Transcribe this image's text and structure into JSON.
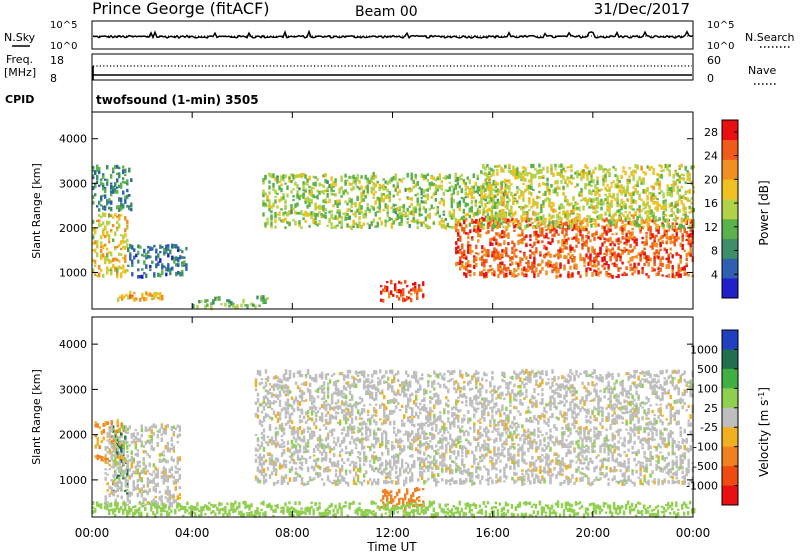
{
  "header": {
    "station": "Prince George (fitACF)",
    "beam": "Beam 00",
    "date": "31/Dec/2017"
  },
  "top_panels": {
    "nsky_label": "N.Sky",
    "nsearch_label": "N.Search",
    "noise_ticks": [
      "10^5",
      "10^0"
    ],
    "freq_label": "Freq.",
    "freq_unit": "[MHz]",
    "freq_ticks": [
      "18",
      "8"
    ],
    "nave_label": "Nave",
    "nave_ticks": [
      "60",
      "0"
    ],
    "cpid_label": "CPID",
    "cpid_text": "twofsound (1-min) 3505"
  },
  "colors": {
    "power_scale": [
      "#1f1fcc",
      "#2f5fb0",
      "#3d8f6a",
      "#59b24a",
      "#b2d24a",
      "#f0c020",
      "#f09020",
      "#f05a1a",
      "#e81010"
    ],
    "velocity_scale": [
      "#2040c0",
      "#207050",
      "#40b040",
      "#90d050",
      "#bebebe",
      "#f0b020",
      "#f08020",
      "#f04a10",
      "#e81010"
    ]
  },
  "chart_data": [
    {
      "type": "heatmap",
      "title": "Power",
      "xlabel": "",
      "ylabel": "Slant Range [km]",
      "x_ticks": [
        "00:00",
        "04:00",
        "08:00",
        "12:00",
        "16:00",
        "20:00",
        "00:00"
      ],
      "x_range_hours": [
        0,
        24
      ],
      "y_ticks": [
        1000,
        2000,
        3000,
        4000
      ],
      "ylim": [
        180,
        4600
      ],
      "colorbar": {
        "label": "Power [dB]",
        "ticks": [
          "4",
          "8",
          "12",
          "16",
          "20",
          "24",
          "28"
        ],
        "range": [
          0,
          30
        ]
      },
      "features": [
        {
          "region": "morning high band",
          "t": [
            0.0,
            1.6
          ],
          "range_km": [
            2400,
            3400
          ],
          "power_db": 8
        },
        {
          "region": "early echo blob",
          "t": [
            0.0,
            1.4
          ],
          "range_km": [
            900,
            2300
          ],
          "power_db": 18
        },
        {
          "region": "ground-scatter strip",
          "t": [
            1.0,
            2.8
          ],
          "range_km": [
            380,
            550
          ],
          "power_db": 20
        },
        {
          "region": "mid-range patch",
          "t": [
            1.4,
            3.8
          ],
          "range_km": [
            900,
            1600
          ],
          "power_db": 6
        },
        {
          "region": "near-range scatter",
          "t": [
            4.0,
            7.0
          ],
          "range_km": [
            200,
            450
          ],
          "power_db": 12
        },
        {
          "region": "high band",
          "t": [
            6.8,
            16.5
          ],
          "range_km": [
            2000,
            3200
          ],
          "power_db": 14
        },
        {
          "region": "noon echo",
          "t": [
            11.5,
            13.2
          ],
          "range_km": [
            350,
            800
          ],
          "power_db": 28
        },
        {
          "region": "evening band",
          "t": [
            14.5,
            24.0
          ],
          "range_km": [
            900,
            2200
          ],
          "power_db": 26
        },
        {
          "region": "evening high band",
          "t": [
            15.5,
            24.0
          ],
          "range_km": [
            2000,
            3400
          ],
          "power_db": 16
        }
      ]
    },
    {
      "type": "heatmap",
      "title": "Velocity",
      "xlabel": "Time UT",
      "ylabel": "Slant Range [km]",
      "x_ticks": [
        "00:00",
        "04:00",
        "08:00",
        "12:00",
        "16:00",
        "20:00",
        "00:00"
      ],
      "x_range_hours": [
        0,
        24
      ],
      "y_ticks": [
        1000,
        2000,
        3000,
        4000
      ],
      "ylim": [
        180,
        4600
      ],
      "colorbar": {
        "label": "Velocity [m s-1]",
        "label_main": "Velocity [m s",
        "label_sup": "-1",
        "label_end": "]",
        "ticks": [
          "1000",
          "500",
          "100",
          "25",
          "-25",
          "-100",
          "-500",
          "-1000"
        ]
      },
      "features": [
        {
          "region": "early ionospheric echo",
          "t": [
            0.1,
            1.3
          ],
          "range_km": [
            1400,
            2300
          ],
          "velocity_ms": -100
        },
        {
          "region": "early green echo",
          "t": [
            0.8,
            1.4
          ],
          "range_km": [
            700,
            2200
          ],
          "velocity_ms": 100
        },
        {
          "region": "morning ground scatter",
          "t": [
            0.5,
            3.5
          ],
          "range_km": [
            400,
            2200
          ],
          "velocity_ms": 0
        },
        {
          "region": "grey band",
          "t": [
            6.5,
            24.0
          ],
          "range_km": [
            900,
            3400
          ],
          "velocity_ms": 0
        },
        {
          "region": "noon negative echo",
          "t": [
            11.5,
            13.2
          ],
          "range_km": [
            350,
            800
          ],
          "velocity_ms": -300
        },
        {
          "region": "near-range positive",
          "t": [
            0.0,
            24.0
          ],
          "range_km": [
            200,
            500
          ],
          "velocity_ms": 60
        }
      ]
    }
  ]
}
